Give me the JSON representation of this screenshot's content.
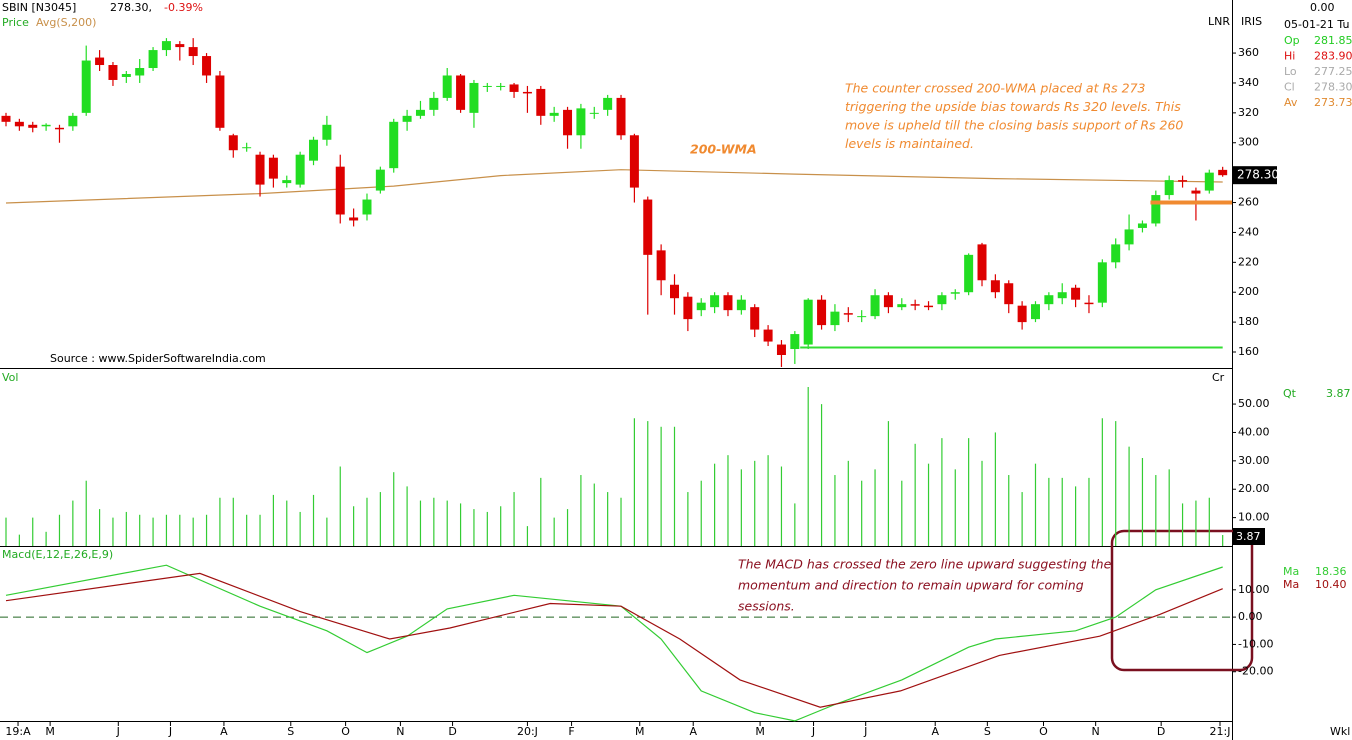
{
  "header": {
    "symbol": "SBIN [N3045]",
    "quote": "278.30,",
    "change": "-0.39%",
    "price": "Price",
    "lnr": "LNR",
    "iris": "IRIS",
    "top_value": "0.00",
    "date": "05-01-21 Tu",
    "ohlc": [
      {
        "label": "Op",
        "value": "281.85",
        "color": "#22cc22"
      },
      {
        "label": "Hi",
        "value": "283.90",
        "color": "#dd1111"
      },
      {
        "label": "Lo",
        "value": "277.25",
        "color": "#aaaaaa"
      },
      {
        "label": "Cl",
        "value": "278.30",
        "color": "#aaaaaa"
      },
      {
        "label": "Av",
        "value": "273.73",
        "color": "#e08a30"
      }
    ],
    "source": "Source : www.SpiderSoftwareIndia.com",
    "wkl": "Wkl"
  },
  "chart_data": [
    {
      "type": "candlestick",
      "price_tag": "278.30",
      "up_color": "#22dd22",
      "down_color": "#dd0000",
      "open": [
        318,
        314,
        312,
        311,
        310,
        311,
        320,
        357,
        352,
        344,
        345,
        350,
        362,
        366,
        364,
        358,
        345,
        305,
        297,
        292,
        290,
        273,
        272,
        288,
        302,
        284,
        250,
        252,
        268,
        283,
        314,
        318,
        322,
        330,
        345,
        320,
        338,
        338,
        339,
        334,
        336,
        318,
        322,
        305,
        320,
        322,
        330,
        305,
        262,
        228,
        205,
        197,
        188,
        190,
        198,
        188,
        190,
        175,
        165,
        162,
        165,
        195,
        178,
        186,
        184,
        184,
        198,
        190,
        192,
        191,
        192,
        199,
        200,
        232,
        208,
        206,
        191,
        182,
        192,
        196,
        203,
        193,
        193,
        220,
        232,
        243,
        246,
        265,
        275,
        268,
        268,
        281.85
      ],
      "high": [
        320,
        316,
        314,
        313,
        312,
        320,
        365,
        362,
        354,
        348,
        356,
        364,
        370,
        368,
        370,
        360,
        348,
        306,
        300,
        294,
        292,
        278,
        294,
        304,
        318,
        292,
        256,
        266,
        284,
        316,
        322,
        328,
        334,
        350,
        346,
        342,
        340,
        340,
        340,
        338,
        338,
        324,
        324,
        326,
        324,
        332,
        332,
        306,
        264,
        232,
        212,
        200,
        196,
        200,
        200,
        198,
        192,
        178,
        168,
        174,
        196,
        198,
        192,
        190,
        188,
        202,
        200,
        196,
        195,
        194,
        200,
        202,
        226,
        233,
        212,
        208,
        194,
        194,
        200,
        206,
        205,
        198,
        222,
        236,
        252,
        248,
        268,
        278,
        278,
        270,
        282,
        283.9
      ],
      "low": [
        311,
        308,
        307,
        308,
        300,
        308,
        318,
        348,
        338,
        340,
        340,
        348,
        358,
        355,
        352,
        340,
        308,
        290,
        294,
        264,
        270,
        270,
        270,
        285,
        298,
        246,
        244,
        248,
        266,
        280,
        308,
        316,
        318,
        328,
        320,
        310,
        334,
        335,
        330,
        320,
        312,
        314,
        296,
        296,
        316,
        318,
        302,
        260,
        185,
        198,
        185,
        174,
        184,
        186,
        184,
        185,
        170,
        164,
        150,
        152,
        162,
        175,
        174,
        180,
        180,
        182,
        186,
        188,
        188,
        188,
        188,
        195,
        198,
        204,
        196,
        186,
        175,
        180,
        188,
        192,
        190,
        186,
        190,
        216,
        228,
        240,
        244,
        262,
        270,
        248,
        266,
        277.25
      ],
      "close": [
        314,
        311,
        310,
        312,
        309,
        318,
        355,
        352,
        342,
        346,
        350,
        362,
        368,
        364,
        358,
        345,
        310,
        295,
        297,
        272,
        276,
        275,
        292,
        302,
        312,
        252,
        248,
        262,
        282,
        314,
        318,
        322,
        330,
        345,
        322,
        340,
        338,
        338,
        334,
        333,
        318,
        320,
        305,
        323,
        320,
        330,
        305,
        270,
        225,
        208,
        196,
        182,
        193,
        198,
        188,
        195,
        175,
        167,
        158,
        172,
        195,
        178,
        187,
        185,
        184,
        198,
        190,
        192,
        191,
        190,
        198,
        200,
        225,
        208,
        200,
        192,
        180,
        192,
        198,
        200,
        195,
        192,
        220,
        232,
        242,
        246,
        265,
        275,
        274,
        266,
        280,
        278.3
      ],
      "ma": {
        "name": "Avg(S,200)",
        "color": "#c8904a",
        "x": [
          0,
          19,
          29,
          37,
          46,
          59,
          74,
          91
        ],
        "values": [
          259.7,
          266,
          271,
          278,
          282,
          279,
          276,
          273.73
        ]
      },
      "levels": [
        {
          "value": 260,
          "from": 85.6,
          "to": 91.7,
          "color": "#f08a30"
        },
        {
          "value": 163,
          "from": 59.4,
          "to": 91,
          "color": "#33dd33"
        }
      ],
      "ma_label": "200-WMA",
      "annotation": [
        "The counter crossed 200-WMA placed at Rs 273",
        "triggering the upside bias towards Rs 320 levels. This",
        "move is upheld till the closing basis support of Rs 260",
        "levels is maintained."
      ],
      "ylim": [
        149.3,
        395.5
      ],
      "yticks": [
        160,
        180,
        200,
        220,
        240,
        260,
        280,
        300,
        320,
        340,
        360
      ]
    },
    {
      "type": "bar",
      "title": "Vol",
      "unit_label": "Cr",
      "color": "#33cc33",
      "qt_label": "Qt",
      "qt_value": "3.87",
      "value_tag": "3.87",
      "values": [
        10,
        4,
        10,
        5,
        11,
        16,
        23,
        13,
        10,
        12,
        11,
        10,
        11,
        11,
        10,
        11,
        17,
        17,
        11,
        11,
        18,
        16,
        12,
        18,
        10,
        28,
        14,
        17,
        19,
        26,
        21,
        16,
        17,
        16,
        15,
        13,
        12,
        14,
        19,
        7,
        24,
        10,
        13,
        25,
        22,
        19,
        17,
        45,
        44,
        42,
        42,
        19,
        23,
        29,
        32,
        27,
        30,
        32,
        28,
        15,
        56,
        50,
        25,
        30,
        23,
        27,
        44,
        23,
        36,
        29,
        38,
        27,
        38,
        30,
        40,
        25,
        19,
        29,
        24,
        24,
        21,
        24,
        45,
        44,
        35,
        31,
        25,
        27,
        15,
        16,
        17,
        3.87
      ],
      "ylim": [
        0,
        62
      ],
      "yticks": [
        {
          "value": 10,
          "label": "10.00"
        },
        {
          "value": 20,
          "label": "20.00"
        },
        {
          "value": 30,
          "label": "30.00"
        },
        {
          "value": 40,
          "label": "40.00"
        },
        {
          "value": 50,
          "label": "50.00"
        }
      ]
    },
    {
      "type": "line",
      "title": "Macd(E,12,E,26,E,9)",
      "zero_line": true,
      "series": [
        {
          "name": "Ma",
          "value_label": "18.36",
          "color": "#33cc33",
          "x": [
            0,
            12,
            19,
            24,
            27,
            30,
            33,
            38,
            46,
            49,
            52,
            56,
            59,
            62,
            67,
            72,
            74,
            80,
            83,
            86,
            91
          ],
          "values": [
            8,
            19,
            4,
            -5,
            -13,
            -7,
            3,
            8,
            4,
            -8,
            -27,
            -35,
            -38,
            -32,
            -23,
            -11,
            -8,
            -5,
            0,
            10,
            18.36
          ]
        },
        {
          "name": "Ma",
          "value_label": "10.40",
          "color": "#a01010",
          "x": [
            0,
            14.5,
            22,
            28.7,
            33.2,
            40.7,
            46,
            50.4,
            54.9,
            60.9,
            66.9,
            74.3,
            81.8,
            86.3,
            91
          ],
          "values": [
            6,
            16,
            2,
            -8,
            -4,
            5,
            4,
            -8,
            -23,
            -33,
            -27,
            -14,
            -7,
            1,
            10.4
          ]
        }
      ],
      "annotation": [
        "The MACD has crossed the zero line upward suggesting the",
        "momentum and direction to remain upward for coming",
        "sessions."
      ],
      "ylim": [
        -38.4,
        25.3
      ],
      "yticks": [
        {
          "value": 10,
          "label": "10.00"
        },
        {
          "value": 0,
          "label": "0.00"
        },
        {
          "value": -10,
          "label": "-10.00"
        },
        {
          "value": -20,
          "label": "-20.00"
        }
      ],
      "xticks": [
        {
          "value": 0.9,
          "label": "19:A"
        },
        {
          "value": 3.3,
          "label": "M"
        },
        {
          "value": 8.4,
          "label": "J"
        },
        {
          "value": 12.3,
          "label": "J"
        },
        {
          "value": 16.3,
          "label": "A"
        },
        {
          "value": 21.3,
          "label": "S"
        },
        {
          "value": 25.4,
          "label": "O"
        },
        {
          "value": 29.5,
          "label": "N"
        },
        {
          "value": 33.4,
          "label": "D"
        },
        {
          "value": 39,
          "label": "20:J"
        },
        {
          "value": 42.3,
          "label": "F"
        },
        {
          "value": 47.4,
          "label": "M"
        },
        {
          "value": 51.4,
          "label": "A"
        },
        {
          "value": 56.4,
          "label": "M"
        },
        {
          "value": 60.4,
          "label": "J"
        },
        {
          "value": 64.3,
          "label": "J"
        },
        {
          "value": 69.5,
          "label": "A"
        },
        {
          "value": 73.4,
          "label": "S"
        },
        {
          "value": 77.6,
          "label": "O"
        },
        {
          "value": 81.5,
          "label": "N"
        },
        {
          "value": 86.4,
          "label": "D"
        },
        {
          "value": 90.8,
          "label": "21:J"
        }
      ]
    }
  ]
}
